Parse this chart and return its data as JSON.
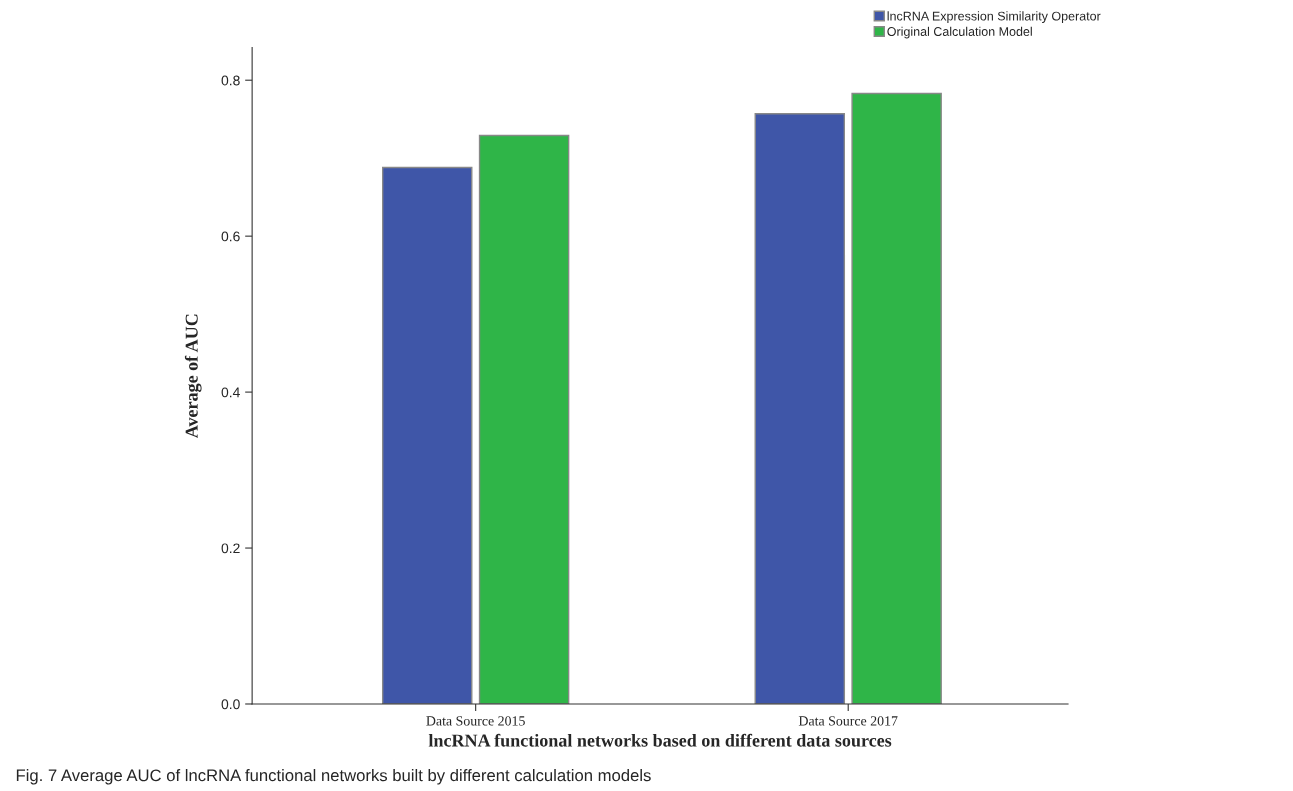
{
  "chart_data": {
    "type": "bar",
    "xlabel": "lncRNA functional networks based on different data sources",
    "ylabel": "Average of AUC",
    "categories": [
      "Data Source 2015",
      "Data Source 2017"
    ],
    "series": [
      {
        "name": "lncRNA Expression Similarity Operator",
        "color": "#3f56a8",
        "values": [
          0.688,
          0.757
        ]
      },
      {
        "name": "Original Calculation Model",
        "color": "#2fb548",
        "values": [
          0.729,
          0.783
        ]
      }
    ],
    "ylim": [
      0,
      0.842
    ],
    "yticks": [
      {
        "value": 0,
        "label": "0.0"
      },
      {
        "value": 0.2,
        "label": "0.2"
      },
      {
        "value": 0.4,
        "label": "0.4"
      },
      {
        "value": 0.6,
        "label": "0.6"
      },
      {
        "value": 0.8,
        "label": "0.8"
      }
    ],
    "grid": false,
    "legend": "top right",
    "annotations": [
      "Fig. 7 Average AUC of lncRNA functional networks built by different calculation models"
    ]
  }
}
